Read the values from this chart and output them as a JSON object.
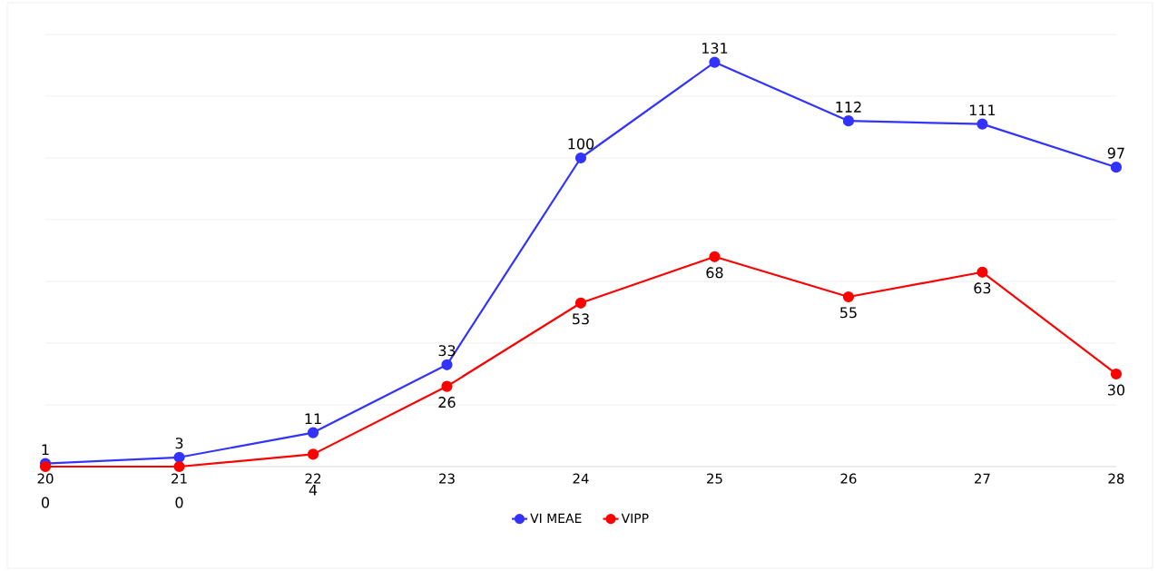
{
  "chart_data": {
    "type": "line",
    "categories": [
      "20",
      "21",
      "22",
      "23",
      "24",
      "25",
      "26",
      "27",
      "28"
    ],
    "series": [
      {
        "name": "VI MEAE",
        "color": "#3333ff",
        "values": [
          1,
          3,
          11,
          33,
          100,
          131,
          112,
          111,
          97
        ]
      },
      {
        "name": "VIPP",
        "color": "#ff0000",
        "values": [
          0,
          0,
          4,
          26,
          53,
          68,
          55,
          63,
          30
        ]
      }
    ],
    "ylim": [
      0,
      140
    ],
    "yticks": [
      {
        "value": 0,
        "label": null
      },
      {
        "value": 20,
        "label": null
      },
      {
        "value": 40,
        "label": null
      },
      {
        "value": 60,
        "label": null
      },
      {
        "value": 80,
        "label": null
      },
      {
        "value": 100,
        "label": null
      },
      {
        "value": 120,
        "label": null
      },
      {
        "value": 140,
        "label": null
      }
    ],
    "grid": "y",
    "legend": "bottom",
    "marker": "circle",
    "line_style": "solid",
    "data_labels": true
  }
}
